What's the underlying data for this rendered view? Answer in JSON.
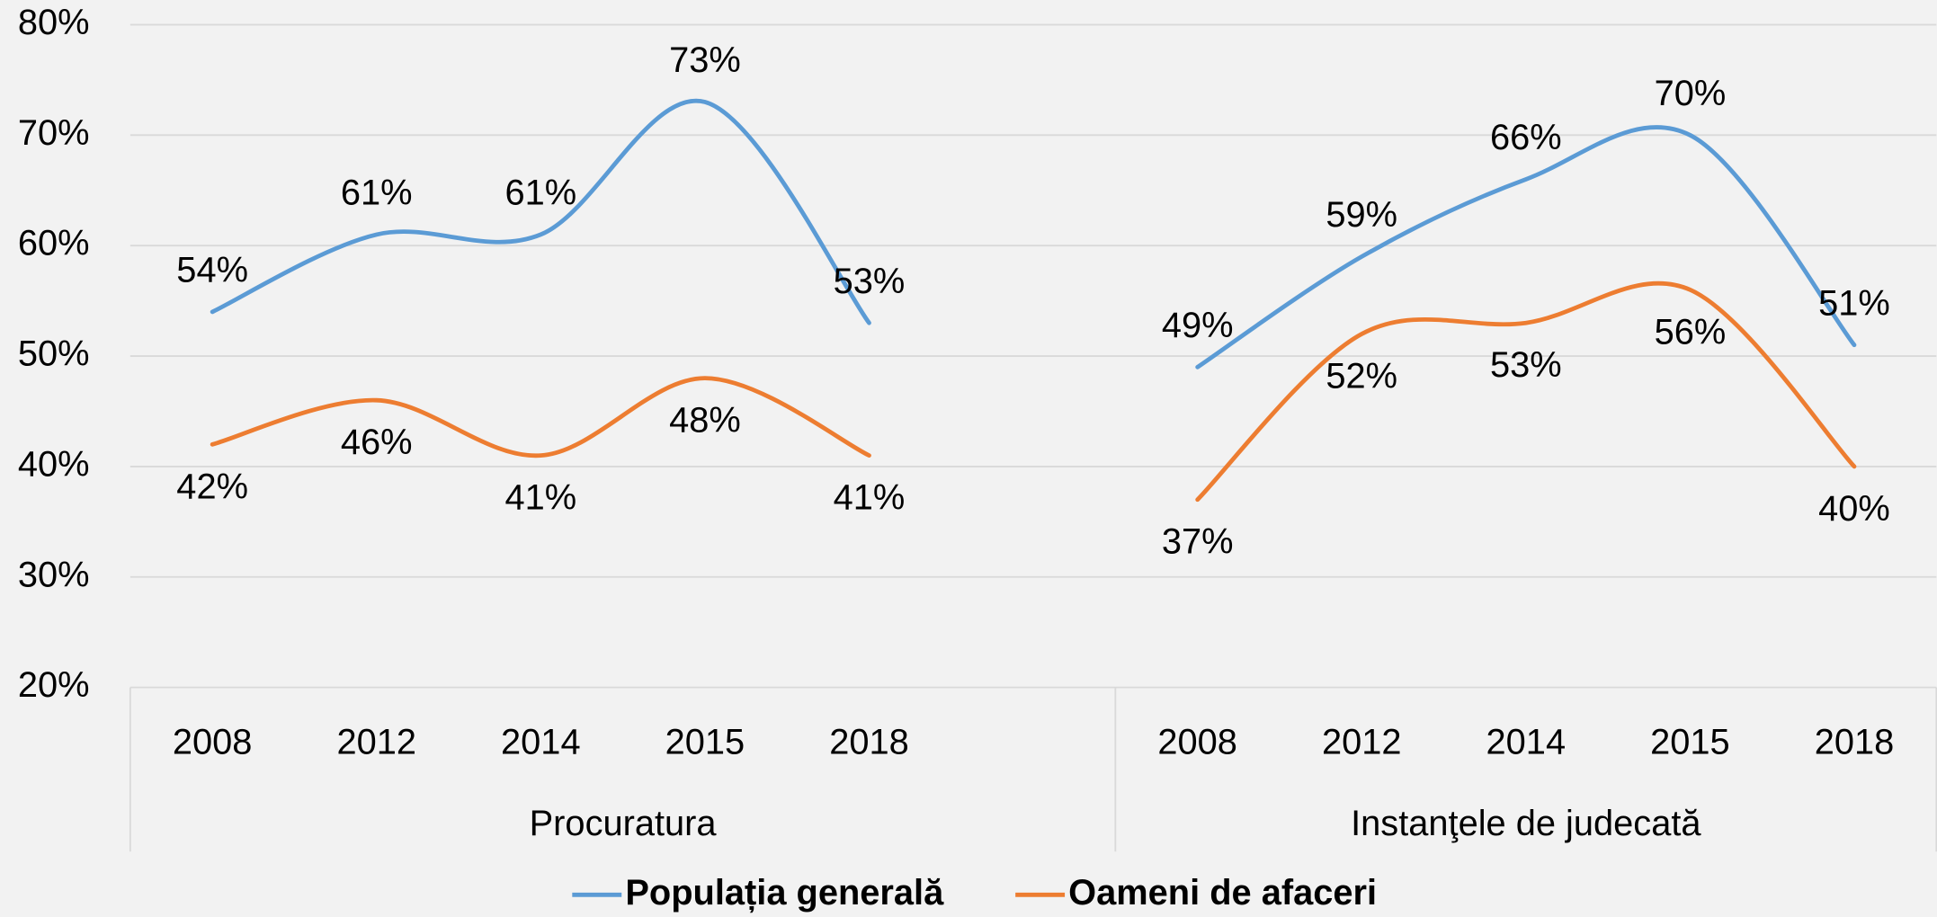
{
  "chart_data": {
    "type": "line",
    "categories": [
      "2008",
      "2012",
      "2014",
      "2015",
      "2018",
      null,
      "2008",
      "2012",
      "2014",
      "2015",
      "2018"
    ],
    "groups": [
      "Procuratura",
      "Instanţele de judecată"
    ],
    "series": [
      {
        "name": "Populația generală",
        "color": "#5b9bd5",
        "values": [
          54,
          61,
          61,
          73,
          53,
          null,
          49,
          59,
          66,
          70,
          51
        ],
        "value_labels": [
          "54%",
          "61%",
          "61%",
          "73%",
          "53%",
          null,
          "49%",
          "59%",
          "66%",
          "70%",
          "51%"
        ]
      },
      {
        "name": "Oameni de afaceri",
        "color": "#ed7d31",
        "values": [
          42,
          46,
          41,
          48,
          41,
          null,
          37,
          52,
          53,
          56,
          40
        ],
        "value_labels": [
          "42%",
          "46%",
          "41%",
          "48%",
          "41%",
          null,
          "37%",
          "52%",
          "53%",
          "56%",
          "40%"
        ]
      }
    ],
    "ylim": [
      20,
      80
    ],
    "yticks": [
      {
        "value": 20,
        "label": "20%"
      },
      {
        "value": 30,
        "label": "30%"
      },
      {
        "value": 40,
        "label": "40%"
      },
      {
        "value": 50,
        "label": "50%"
      },
      {
        "value": 60,
        "label": "60%"
      },
      {
        "value": 70,
        "label": "70%"
      },
      {
        "value": 80,
        "label": "80%"
      }
    ],
    "grid": true,
    "smooth": true,
    "legend": "bottom"
  }
}
